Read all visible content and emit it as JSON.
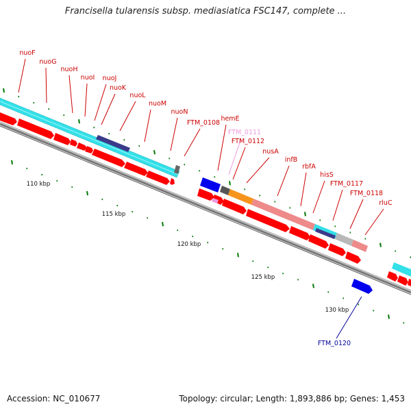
{
  "header": {
    "title": "Francisella tularensis subsp. mediasiatica FSC147, complete ..."
  },
  "footer": {
    "accession": "Accession: NC_010677",
    "topology": "Topology: circular; Length: 1,893,886 bp; Genes: 1,453"
  },
  "colors": {
    "gene_red": "#ff0000",
    "gene_dark_red": "#c80000",
    "cds_cyan": "#33e0e8",
    "cds_pink": "#ee8a8a",
    "cds_orange": "#f7941d",
    "cds_gray": "#b8b8b8",
    "highlight_navy": "#3a3a8a",
    "gene_blue": "#0000ee",
    "label_red": "#cc0000",
    "label_pink": "#ee99dd",
    "label_blue": "#000099",
    "tick_green": "#007700",
    "backbone": "#808080"
  },
  "ruler": [
    {
      "label": "110 kbp",
      "pos": 110
    },
    {
      "label": "115 kbp",
      "pos": 115
    },
    {
      "label": "120 kbp",
      "pos": 120
    },
    {
      "label": "125 kbp",
      "pos": 125
    },
    {
      "label": "130 kbp",
      "pos": 130
    }
  ],
  "gene_labels": [
    {
      "name": "nuoF",
      "color": "red"
    },
    {
      "name": "nuoG",
      "color": "red"
    },
    {
      "name": "nuoH",
      "color": "red"
    },
    {
      "name": "nuoI",
      "color": "red"
    },
    {
      "name": "nuoJ",
      "color": "red"
    },
    {
      "name": "nuoK",
      "color": "red"
    },
    {
      "name": "nuoL",
      "color": "red"
    },
    {
      "name": "nuoM",
      "color": "red"
    },
    {
      "name": "nuoN",
      "color": "red"
    },
    {
      "name": "FTM_0108",
      "color": "red"
    },
    {
      "name": "hemE",
      "color": "red"
    },
    {
      "name": "FTM_0111",
      "color": "pink"
    },
    {
      "name": "FTM_0112",
      "color": "red"
    },
    {
      "name": "nusA",
      "color": "red"
    },
    {
      "name": "infB",
      "color": "red"
    },
    {
      "name": "rbfA",
      "color": "red"
    },
    {
      "name": "hisS",
      "color": "red"
    },
    {
      "name": "FTM_0117",
      "color": "red"
    },
    {
      "name": "FTM_0118",
      "color": "red"
    },
    {
      "name": "rluC",
      "color": "red"
    },
    {
      "name": "FTM_0120",
      "color": "blue"
    }
  ]
}
